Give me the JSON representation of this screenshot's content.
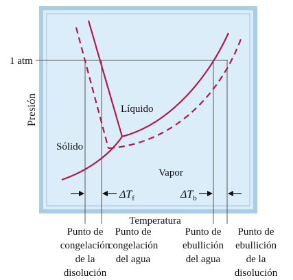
{
  "diagram": {
    "pressure_marker": "1 atm",
    "y_axis_label": "Presión",
    "x_axis_label": "Temperatura",
    "regions": {
      "solid": "Sólido",
      "liquid": "Líquido",
      "vapor": "Vapor"
    },
    "delta_freezing": {
      "symbol": "ΔT",
      "subscript": "f"
    },
    "delta_boiling": {
      "symbol": "ΔT",
      "subscript": "b"
    },
    "colors": {
      "frame": "#a9cde6",
      "panel": "#dbedf9",
      "curve": "#b0184a",
      "guide": "#555555"
    },
    "captions": [
      {
        "lines": [
          "Punto de",
          "congelación",
          "de la",
          "disolución"
        ]
      },
      {
        "lines": [
          "Punto de",
          "congelación",
          "del agua"
        ]
      },
      {
        "lines": [
          "Punto de",
          "ebullición",
          "del agua"
        ]
      },
      {
        "lines": [
          "Punto de",
          "ebullición",
          "de la",
          "disolución"
        ]
      }
    ]
  }
}
